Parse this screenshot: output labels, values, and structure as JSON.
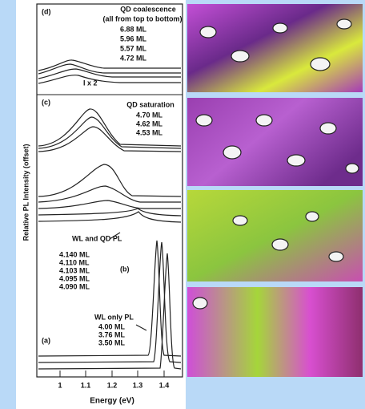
{
  "figure": {
    "y_axis_label": "Relative PL Intensity (offset)",
    "x_axis": {
      "label": "Energy (eV)",
      "ticks": [
        "1",
        "1.1",
        "1.2",
        "1.3",
        "1.4"
      ]
    },
    "panels": {
      "d": {
        "label": "(d)",
        "title": "QD coalescence",
        "subtitle": "(all from top to bottom)",
        "thicknesses": [
          "6.88 ML",
          "5.96 ML",
          "5.57 ML",
          "4.72 ML"
        ],
        "scale_note": "I x 2"
      },
      "c": {
        "label": "(c)",
        "title": "QD saturation",
        "thicknesses": [
          "4.70 ML",
          "4.62 ML",
          "4.53 ML"
        ]
      },
      "b": {
        "label": "(b)",
        "title": "WL and QD PL",
        "thicknesses": [
          "4.140 ML",
          "4.110 ML",
          "4.103 ML",
          "4.095 ML",
          "4.090 ML"
        ]
      },
      "a": {
        "label": "(a)",
        "title": "WL only PL",
        "thicknesses": [
          "4.00 ML",
          "3.76 ML",
          "3.50 ML"
        ]
      }
    }
  }
}
